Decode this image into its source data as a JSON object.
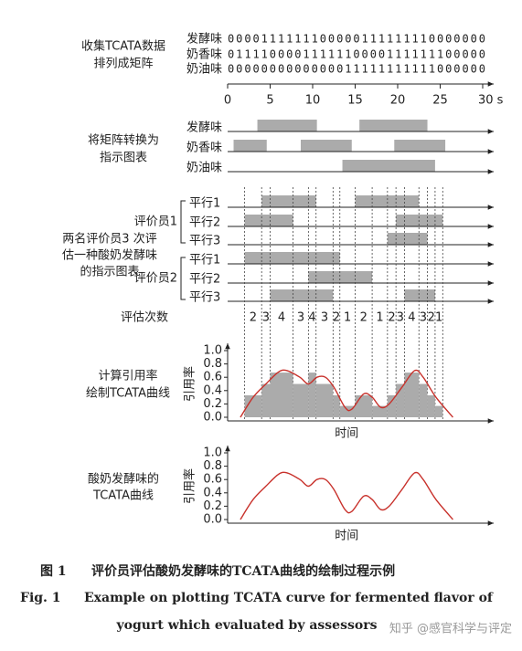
{
  "matrix": {
    "label": [
      "收集TCATA数据",
      "排列成矩阵"
    ],
    "rows": [
      {
        "name": "发酵味",
        "bits": "0000111111100000111111110000000"
      },
      {
        "name": "奶香味",
        "bits": "0111100001111110000111111100000"
      },
      {
        "name": "奶油味",
        "bits": "0000000000000011111111111000000"
      }
    ]
  },
  "time_axis": {
    "lim": [
      0,
      30
    ],
    "ticks": [
      0,
      5,
      10,
      15,
      20,
      25,
      {
        "value": 30,
        "label": "30 s"
      }
    ]
  },
  "indicator": {
    "label": [
      "将矩阵转换为",
      "指示图表"
    ],
    "rows": [
      {
        "name": "发酵味",
        "intervals": [
          [
            3.5,
            10.5
          ],
          [
            15.5,
            23.5
          ]
        ]
      },
      {
        "name": "奶香味",
        "intervals": [
          [
            0.7,
            4.6
          ],
          [
            8.6,
            14.6
          ],
          [
            19.6,
            25.6
          ]
        ]
      },
      {
        "name": "奶油味",
        "intervals": [
          [
            13.5,
            24.4
          ]
        ]
      }
    ]
  },
  "assessors": {
    "label": [
      "两名评价员3 次评",
      "估一种酸奶发酵味",
      "的指示图表"
    ],
    "panels": [
      {
        "name": "评价员1",
        "reps": [
          {
            "name": "平行1",
            "intervals": [
              [
                4,
                10.4
              ],
              [
                15,
                22.5
              ]
            ]
          },
          {
            "name": "平行2",
            "intervals": [
              [
                2,
                7.7
              ],
              [
                19.8,
                25.3
              ]
            ]
          },
          {
            "name": "平行3",
            "intervals": [
              [
                18.8,
                23.5
              ]
            ]
          }
        ]
      },
      {
        "name": "评价员2",
        "reps": [
          {
            "name": "平行1",
            "intervals": [
              [
                2,
                13.2
              ]
            ]
          },
          {
            "name": "平行2",
            "intervals": [
              [
                9.5,
                17
              ]
            ]
          },
          {
            "name": "平行3",
            "intervals": [
              [
                5,
                12.4
              ],
              [
                20.8,
                24.4
              ]
            ]
          }
        ]
      }
    ],
    "counts_label": "评估次数",
    "counts": [
      2,
      3,
      4,
      3,
      4,
      3,
      2,
      1,
      2,
      1,
      2,
      3,
      4,
      3,
      2,
      1
    ]
  },
  "rate_chart": {
    "label": [
      "计算引用率",
      "绘制TCATA曲线"
    ],
    "ylabel": "引用率",
    "xlabel": "时间",
    "ylim": [
      0,
      1
    ],
    "yticks": [
      {
        "value": 0,
        "label": "0.0"
      },
      {
        "value": 0.2,
        "label": "0.2"
      },
      {
        "value": 0.4,
        "label": "0.4"
      },
      {
        "value": 0.6,
        "label": "0.6"
      },
      {
        "value": 0.8,
        "label": "0.8"
      },
      {
        "value": 1,
        "label": "1.0"
      }
    ],
    "bars": [
      0.33,
      0.5,
      0.67,
      0.5,
      0.67,
      0.5,
      0.33,
      0.17,
      0.33,
      0.17,
      0.33,
      0.5,
      0.67,
      0.5,
      0.33,
      0.17
    ],
    "bar_color": "#ababab",
    "curve": {
      "color": "#c8312b",
      "x": [
        1.5,
        3,
        4.5,
        6,
        7,
        8.5,
        9.5,
        10.5,
        11.5,
        12.5,
        13.8,
        14.6,
        16,
        17,
        18,
        19,
        20.5,
        22,
        23,
        24.5,
        26.5
      ],
      "y": [
        0,
        0.3,
        0.5,
        0.68,
        0.7,
        0.6,
        0.5,
        0.6,
        0.6,
        0.45,
        0.15,
        0.12,
        0.35,
        0.3,
        0.15,
        0.2,
        0.45,
        0.7,
        0.6,
        0.3,
        0
      ]
    }
  },
  "curve_chart": {
    "label": [
      "酸奶发酵味的",
      "TCATA曲线"
    ],
    "ylabel": "引用率",
    "xlabel": "时间",
    "ylim": [
      0,
      1
    ],
    "yticks": [
      {
        "value": 0,
        "label": "0.0"
      },
      {
        "value": 0.2,
        "label": "0.2"
      },
      {
        "value": 0.4,
        "label": "0.4"
      },
      {
        "value": 0.6,
        "label": "0.6"
      },
      {
        "value": 0.8,
        "label": "0.8"
      },
      {
        "value": 1,
        "label": "1.0"
      }
    ],
    "curve": {
      "color": "#c8312b",
      "x": [
        1.5,
        3,
        4.5,
        6,
        7,
        8.5,
        9.5,
        10.5,
        11.5,
        12.5,
        13.8,
        14.6,
        16,
        17,
        18,
        19,
        20.5,
        22,
        23,
        24.5,
        26.5
      ],
      "y": [
        0,
        0.3,
        0.5,
        0.68,
        0.7,
        0.6,
        0.5,
        0.6,
        0.6,
        0.45,
        0.15,
        0.12,
        0.35,
        0.3,
        0.15,
        0.2,
        0.45,
        0.7,
        0.6,
        0.3,
        0
      ]
    }
  },
  "caption": {
    "zh_label": "图 1",
    "zh_text": "评价员评估酸奶发酵味的TCATA曲线的绘制过程示例",
    "en_label": "Fig. 1",
    "en_text": [
      "Example on plotting TCATA curve for fermented flavor of",
      "yogurt which evaluated by assessors"
    ]
  },
  "watermark": "知乎 @感官科学与评定"
}
